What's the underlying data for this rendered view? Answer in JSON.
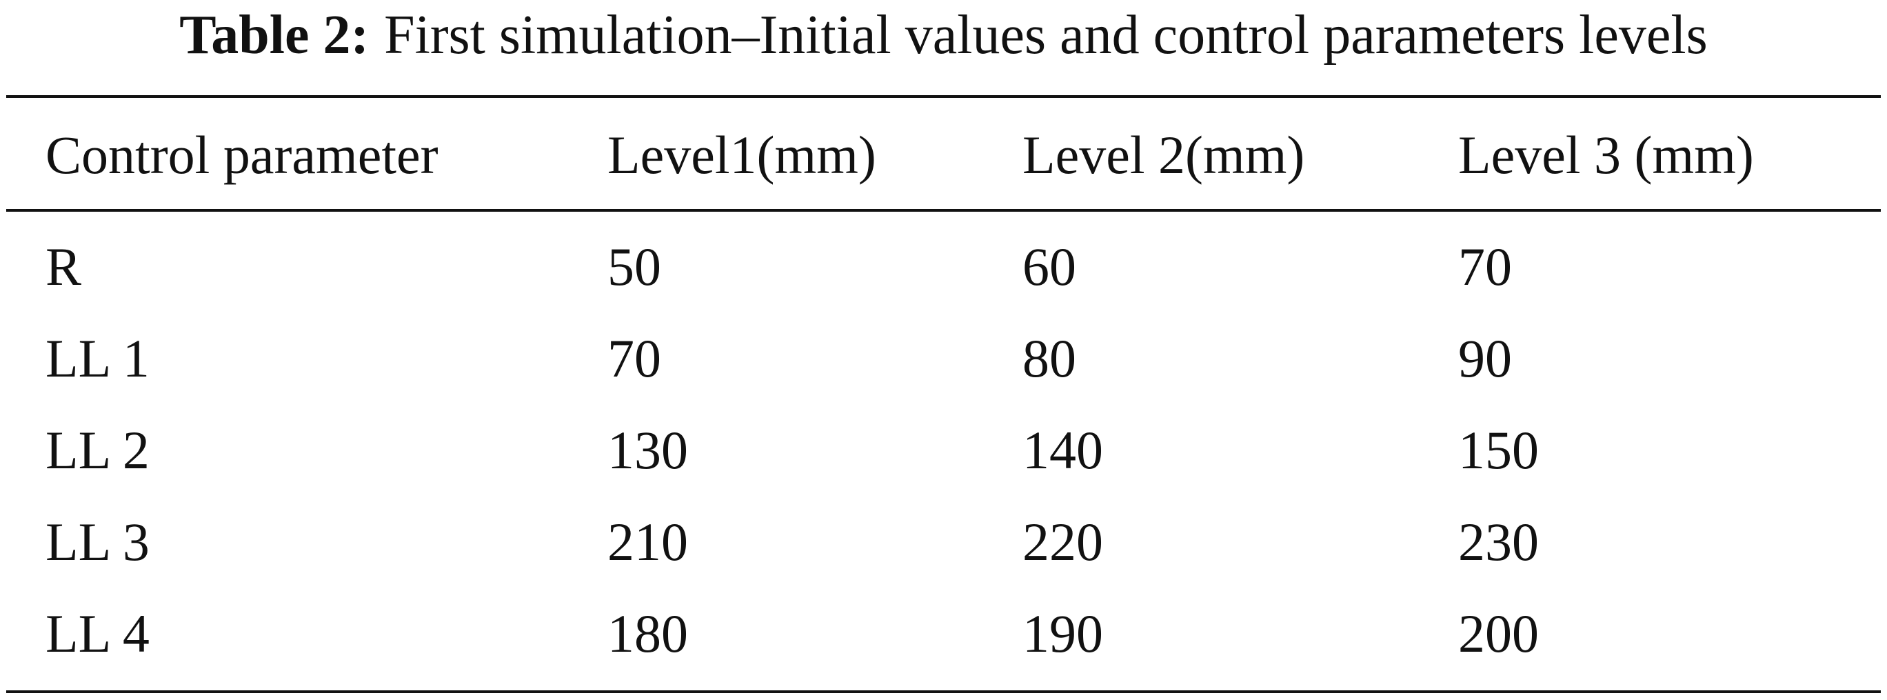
{
  "title": {
    "label": "Table 2:",
    "text": "First simulation–Initial values and control parameters levels"
  },
  "table": {
    "header": [
      "Control parameter",
      "Level1(mm)",
      "Level 2(mm)",
      "Level 3 (mm)"
    ],
    "rows": [
      [
        "R",
        50,
        60,
        70
      ],
      [
        "LL 1",
        70,
        80,
        90
      ],
      [
        "LL 2",
        130,
        140,
        150
      ],
      [
        "LL 3",
        210,
        220,
        230
      ],
      [
        "LL 4",
        180,
        190,
        200
      ]
    ]
  }
}
